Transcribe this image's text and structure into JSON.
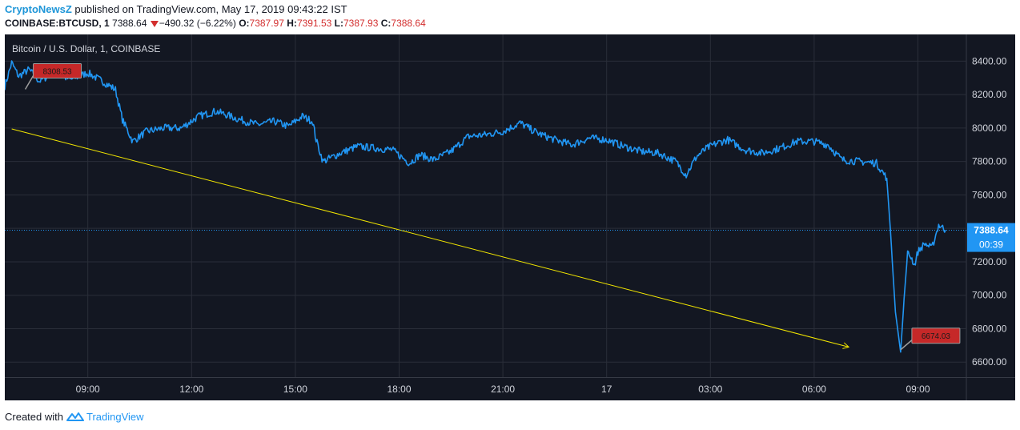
{
  "header": {
    "publisher": "CryptoNewsZ",
    "published_text": " published on TradingView.com, May 17, 2019 09:43:22 IST"
  },
  "symbol_bar": {
    "symbol": "COINBASE:BTCUSD, 1",
    "price": "7388.64",
    "change": "−490.32 (−6.22%)",
    "open_label": "O:",
    "open": "7387.97",
    "high_label": "H:",
    "high": "7391.53",
    "low_label": "L:",
    "low": "7387.93",
    "close_label": "C:",
    "close": "7388.64"
  },
  "footer": {
    "created_with": "Created with",
    "brand": "TradingView"
  },
  "chart_data": {
    "type": "line",
    "title": "Bitcoin / U.S. Dollar, 1, COINBASE",
    "x_ticks": [
      "09:00",
      "12:00",
      "15:00",
      "18:00",
      "21:00",
      "17",
      "03:00",
      "06:00",
      "09:00"
    ],
    "x_tick_hours": [
      9,
      12,
      15,
      18,
      21,
      24,
      27,
      30,
      33
    ],
    "x_range_hours": [
      6.6,
      34.4
    ],
    "y_ticks": [
      6600,
      6800,
      7000,
      7200,
      7400,
      7600,
      7800,
      8000,
      8200,
      8400
    ],
    "ylim": [
      6510,
      8560
    ],
    "grid": true,
    "series": [
      {
        "color": "#2196f3",
        "x": [
          6.6,
          6.8,
          7.0,
          7.3,
          7.6,
          8.0,
          8.5,
          9.0,
          9.5,
          9.8,
          10.0,
          10.3,
          10.7,
          11.2,
          11.7,
          12.2,
          12.7,
          13.0,
          13.4,
          13.9,
          14.4,
          14.8,
          15.2,
          15.5,
          15.6,
          15.8,
          16.3,
          16.8,
          17.3,
          17.8,
          18.3,
          18.6,
          19.0,
          19.5,
          20.0,
          20.5,
          21.0,
          21.5,
          22.0,
          22.5,
          23.0,
          23.5,
          24.0,
          24.5,
          25.0,
          25.5,
          26.0,
          26.3,
          26.6,
          26.9,
          27.2,
          27.5,
          28.0,
          28.5,
          29.0,
          29.5,
          30.0,
          30.4,
          30.8,
          31.3,
          31.8,
          32.1,
          32.2,
          32.35,
          32.5,
          32.6,
          32.7,
          32.8,
          32.9,
          33.0,
          33.2,
          33.4,
          33.6,
          33.8
        ],
        "y": [
          8250,
          8390,
          8310,
          8350,
          8280,
          8330,
          8290,
          8330,
          8270,
          8230,
          8050,
          7920,
          7980,
          8000,
          8000,
          8070,
          8100,
          8080,
          8050,
          8020,
          8040,
          8010,
          8070,
          8040,
          7930,
          7800,
          7850,
          7890,
          7880,
          7870,
          7790,
          7840,
          7810,
          7860,
          7950,
          7960,
          7980,
          8030,
          7970,
          7930,
          7900,
          7940,
          7930,
          7890,
          7860,
          7850,
          7800,
          7720,
          7830,
          7880,
          7910,
          7930,
          7870,
          7850,
          7880,
          7920,
          7920,
          7900,
          7810,
          7800,
          7790,
          7700,
          7400,
          6900,
          6660,
          6980,
          7250,
          7230,
          7180,
          7260,
          7310,
          7280,
          7420,
          7390
        ]
      },
      {
        "color": "#f2e600",
        "x": [
          6.8,
          31.0
        ],
        "y": [
          7995,
          6690
        ]
      }
    ],
    "price_labels": [
      {
        "label": "8308.53",
        "value": 8308.53,
        "x_hour": 7.4
      },
      {
        "label": "6674.03",
        "value": 6674.03,
        "x_hour": 32.5
      }
    ],
    "current_price": {
      "value": 7388.64,
      "label": "7388.64",
      "countdown": "00:39"
    }
  }
}
